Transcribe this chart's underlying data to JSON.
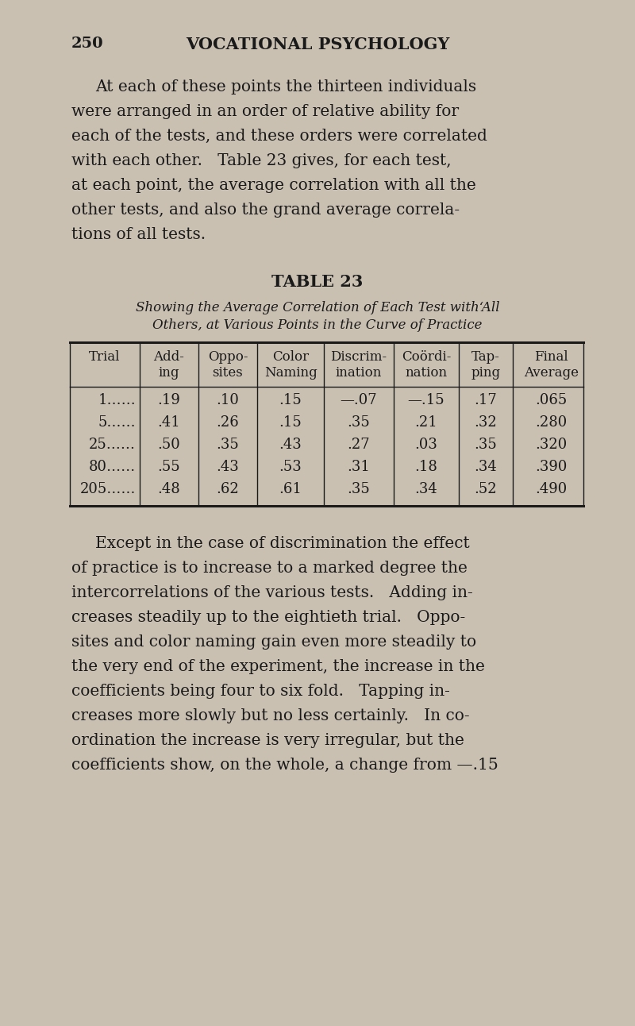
{
  "page_number": "250",
  "page_title": "VOCATIONAL PSYCHOLOGY",
  "bg_color": "#c9c0b2",
  "text_color": "#1a1a1a",
  "para1_lines": [
    "At each of these points the thirteen individuals",
    "were arranged in an order of relative ability for",
    "each of the tests, and these orders were correlated",
    "with each other.   Table 23 gives, for each test,",
    "at each point, the average correlation with all the",
    "other tests, and also the grand average correla-",
    "tions of all tests."
  ],
  "table_title": "TABLE 23",
  "table_subtitle_line1": "Showing the Average Correlation of Each Test with‘All",
  "table_subtitle_line2": "Others, at Various Points in the Curve of Practice",
  "col_headers_line1": [
    "Trial",
    "Add-",
    "Oppo-",
    "Color",
    "Discrim-",
    "Coördi-",
    "Tap-",
    "Final"
  ],
  "col_headers_line2": [
    "",
    "ing",
    "sites",
    "Naming",
    "ination",
    "nation",
    "ping",
    "Average"
  ],
  "rows": [
    [
      "1……",
      ".19",
      ".10",
      ".15",
      "—.07",
      "—.15",
      ".17",
      ".065"
    ],
    [
      "5……",
      ".41",
      ".26",
      ".15",
      ".35",
      ".21",
      ".32",
      ".280"
    ],
    [
      "25……",
      ".50",
      ".35",
      ".43",
      ".27",
      ".03",
      ".35",
      ".320"
    ],
    [
      "80……",
      ".55",
      ".43",
      ".53",
      ".31",
      ".18",
      ".34",
      ".390"
    ],
    [
      "205……",
      ".48",
      ".62",
      ".61",
      ".35",
      ".34",
      ".52",
      ".490"
    ]
  ],
  "para2_lines": [
    "Except in the case of discrimination the effect",
    "of practice is to increase to a marked degree the",
    "intercorrelations of the various tests.   Adding in-",
    "creases steadily up to the eightieth trial.   Oppo-",
    "sites and color naming gain even more steadily to",
    "the very end of the experiment, the increase in the",
    "coefficients being four to six fold.   Tapping in-",
    "creases more slowly but no less certainly.   In co-",
    "ordination the increase is very irregular, but the",
    "coefficients show, on the whole, a change from —.15"
  ]
}
